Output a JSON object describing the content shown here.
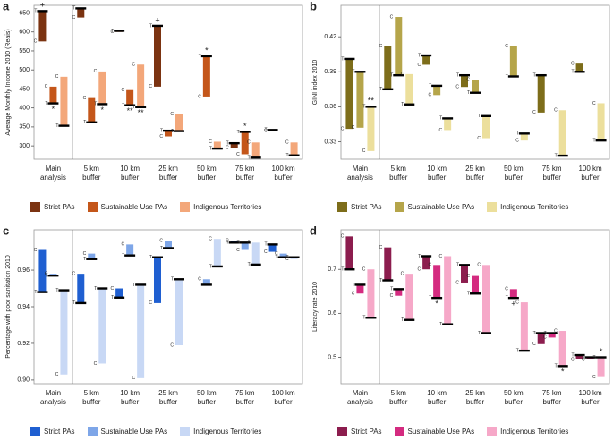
{
  "chart_data": [
    {
      "type": "range",
      "label": "a",
      "y_label": "Average Monthly Income 2010 (Reais)",
      "treated_label": "T",
      "control_label": "C",
      "categories": [
        "Main analysis",
        "5 km buffer",
        "10 km buffer",
        "25 km buffer",
        "50 km buffer",
        "75 km buffer",
        "100 km buffer"
      ],
      "ylim": [
        265,
        670
      ],
      "yticks": [
        300,
        350,
        400,
        450,
        500,
        550,
        600,
        650
      ],
      "series": [
        {
          "name": "Strict PAs",
          "color": "#7b3311",
          "treated": [
            655,
            662,
            603,
            616,
            null,
            307,
            342
          ],
          "control": [
            575,
            638,
            600,
            456,
            null,
            295,
            340
          ],
          "significance": [
            "+",
            null,
            null,
            "+",
            null,
            null,
            null
          ]
        },
        {
          "name": "Sustainable Use PAs",
          "color": "#c4561a",
          "treated": [
            412,
            362,
            407,
            340,
            536,
            337,
            null
          ],
          "control": [
            456,
            426,
            447,
            325,
            430,
            278,
            null
          ],
          "significance": [
            "*",
            null,
            "**",
            null,
            "*",
            "*",
            null
          ]
        },
        {
          "name": "Indigenous Territories",
          "color": "#f3a77a",
          "treated": [
            353,
            410,
            402,
            339,
            293,
            269,
            275
          ],
          "control": [
            482,
            496,
            514,
            384,
            311,
            309,
            309
          ],
          "significance": [
            null,
            "*",
            "**",
            null,
            null,
            null,
            null
          ]
        }
      ]
    },
    {
      "type": "range",
      "label": "b",
      "y_label": "GINI index 2010",
      "treated_label": "T",
      "control_label": "C",
      "categories": [
        "Main analysis",
        "5 km buffer",
        "10 km buffer",
        "25 km buffer",
        "50 km buffer",
        "75 km buffer",
        "100 km buffer"
      ],
      "ylim": [
        0.315,
        0.447
      ],
      "yticks": [
        0.33,
        0.36,
        0.39,
        0.42
      ],
      "series": [
        {
          "name": "Strict PAs",
          "color": "#7d6d1a",
          "treated": [
            0.401,
            0.375,
            0.404,
            0.387,
            null,
            0.387,
            0.39
          ],
          "control": [
            0.341,
            0.412,
            0.396,
            0.377,
            null,
            0.355,
            0.397
          ]
        },
        {
          "name": "Sustainable Use PAs",
          "color": "#b5a54a",
          "treated": [
            0.39,
            0.387,
            0.378,
            0.372,
            0.386,
            null,
            null
          ],
          "control": [
            0.342,
            0.437,
            0.37,
            0.383,
            0.412,
            null,
            null
          ]
        },
        {
          "name": "Indigenous Territories",
          "color": "#ecdf9c",
          "treated": [
            0.36,
            0.362,
            0.35,
            0.352,
            0.337,
            0.318,
            0.331
          ],
          "control": [
            0.322,
            0.388,
            0.34,
            0.333,
            0.331,
            0.357,
            0.363
          ],
          "significance": [
            "**",
            null,
            null,
            null,
            null,
            null,
            null
          ]
        }
      ]
    },
    {
      "type": "range",
      "label": "c",
      "y_label": "Percentage with poor sanitation 2010",
      "treated_label": "T",
      "control_label": "C",
      "categories": [
        "Main analysis",
        "5 km buffer",
        "10 km buffer",
        "25 km buffer",
        "50 km buffer",
        "75 km buffer",
        "100 km buffer"
      ],
      "ylim": [
        0.898,
        0.982
      ],
      "yticks": [
        {
          "value": 0.9,
          "label": "0.90"
        },
        0.92,
        0.94,
        0.96
      ],
      "series": [
        {
          "name": "Strict PAs",
          "color": "#1f5fd1",
          "treated": [
            0.948,
            0.942,
            0.945,
            0.967,
            null,
            0.975,
            0.974
          ],
          "control": [
            0.971,
            0.958,
            0.95,
            0.942,
            null,
            0.976,
            0.97
          ]
        },
        {
          "name": "Sustainable Use PAs",
          "color": "#7ea6e8",
          "treated": [
            0.957,
            0.966,
            0.968,
            0.972,
            0.952,
            0.975,
            0.967
          ],
          "control": [
            0.958,
            0.969,
            0.974,
            0.976,
            0.955,
            0.971,
            0.969
          ]
        },
        {
          "name": "Indigenous Territories",
          "color": "#c8d8f5",
          "treated": [
            0.949,
            0.95,
            0.952,
            0.955,
            0.962,
            0.963,
            0.967
          ],
          "control": [
            0.903,
            0.909,
            0.901,
            0.919,
            0.977,
            0.975,
            0.966
          ]
        }
      ]
    },
    {
      "type": "range",
      "label": "d",
      "y_label": "Literacy rate 2010",
      "treated_label": "T",
      "control_label": "C",
      "categories": [
        "Main analysis",
        "5 km buffer",
        "10 km buffer",
        "25 km buffer",
        "50 km buffer",
        "75 km buffer",
        "100 km buffer"
      ],
      "ylim": [
        0.44,
        0.79
      ],
      "yticks": [
        0.5,
        0.6,
        0.7
      ],
      "series": [
        {
          "name": "Strict PAs",
          "color": "#8c1d4e",
          "treated": [
            0.7,
            0.675,
            0.73,
            0.71,
            null,
            0.555,
            0.505
          ],
          "control": [
            0.775,
            0.75,
            0.7,
            0.67,
            null,
            0.53,
            0.495
          ]
        },
        {
          "name": "Sustainable Use PAs",
          "color": "#d42b80",
          "treated": [
            0.665,
            0.655,
            0.635,
            0.645,
            0.635,
            0.555,
            0.5
          ],
          "control": [
            0.645,
            0.64,
            0.71,
            0.685,
            0.655,
            0.545,
            0.495
          ],
          "significance": [
            null,
            null,
            "*",
            null,
            "+",
            null,
            null
          ]
        },
        {
          "name": "Indigenous Territories",
          "color": "#f6a8c8",
          "treated": [
            0.59,
            0.585,
            0.575,
            0.555,
            0.515,
            0.48,
            0.5
          ],
          "control": [
            0.7,
            0.69,
            0.73,
            0.71,
            0.625,
            0.56,
            0.455
          ],
          "significance": [
            null,
            null,
            null,
            null,
            null,
            "*",
            "*"
          ]
        }
      ]
    }
  ]
}
